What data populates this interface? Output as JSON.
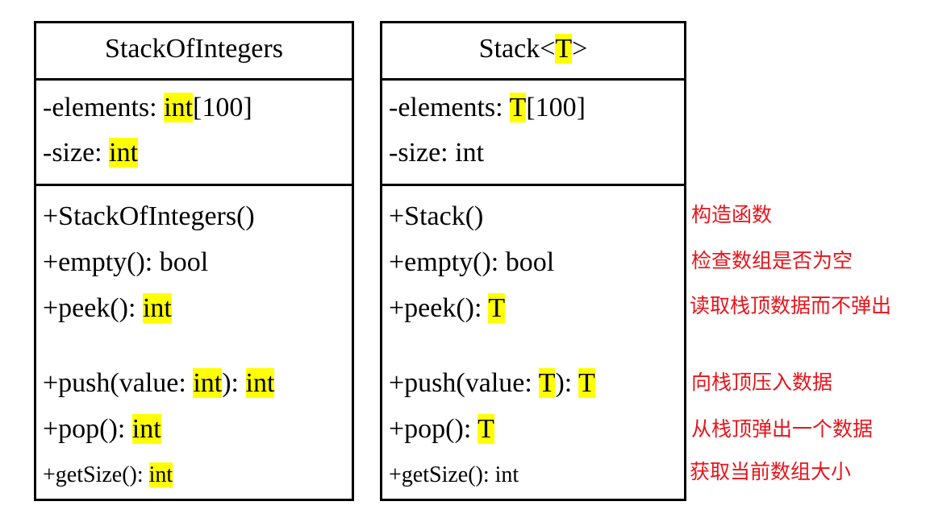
{
  "highlight_color": "#ffff00",
  "note_color": "#e8141b",
  "classes": [
    {
      "name": "StackOfIntegers",
      "fields": [
        {
          "pre": "-elements: ",
          "type": "int",
          "post": "[100]",
          "type_highlighted": true
        },
        {
          "pre": "-size: ",
          "type": "int",
          "post": "",
          "type_highlighted": true
        }
      ],
      "methods": [
        {
          "text": "+StackOfIntegers()"
        },
        {
          "pre": "+empty(): ",
          "ret": "bool",
          "ret_highlighted": false
        },
        {
          "pre": "+peek(): ",
          "ret": "int",
          "ret_highlighted": true
        },
        {
          "pre": "+push(value: ",
          "param": "int",
          "mid": "): ",
          "ret": "int"
        },
        {
          "pre": "+pop(): ",
          "ret": "int",
          "ret_highlighted": true
        },
        {
          "pre": "+getSize(): ",
          "ret": "int",
          "ret_highlighted": true
        }
      ]
    },
    {
      "name_pre": "Stack<",
      "name_param": "T",
      "name_post": ">",
      "fields": [
        {
          "pre": "-elements: ",
          "type": "T",
          "post": "[100]",
          "type_highlighted": true
        },
        {
          "text": "-size: int"
        }
      ],
      "methods": [
        {
          "text": "+Stack()"
        },
        {
          "text": "+empty(): bool"
        },
        {
          "pre": "+peek(): ",
          "ret": "T",
          "ret_highlighted": true
        },
        {
          "pre": "+push(value: ",
          "param": "T",
          "mid": "): ",
          "ret": "T"
        },
        {
          "pre": "+pop(): ",
          "ret": "T",
          "ret_highlighted": true
        },
        {
          "text": "+getSize(): int"
        }
      ]
    }
  ],
  "notes": [
    "构造函数",
    "检查数组是否为空",
    "读取栈顶数据而不弹出",
    "向栈顶压入数据",
    "从栈顶弹出一个数据",
    "获取当前数组大小"
  ]
}
